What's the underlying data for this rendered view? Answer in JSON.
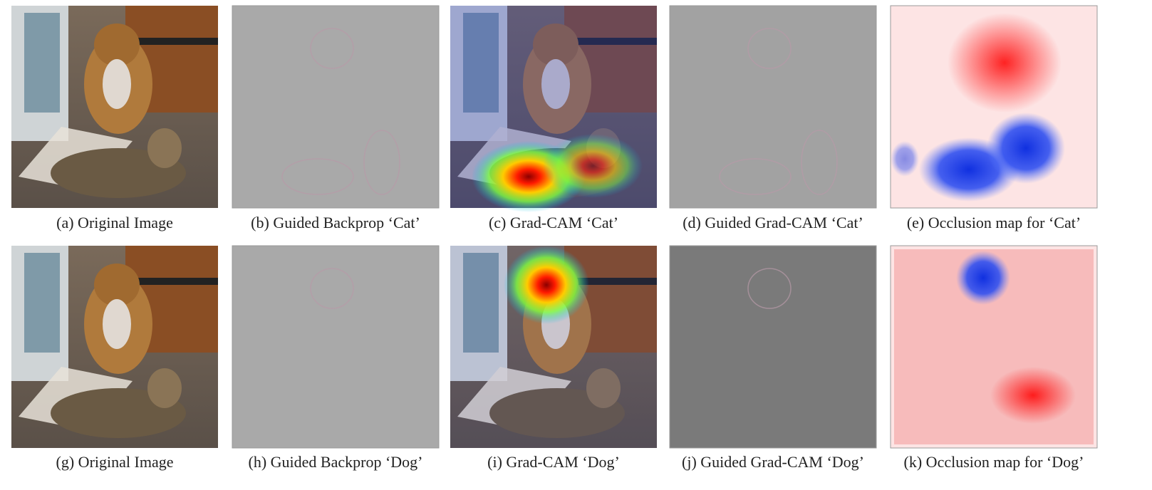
{
  "figure": {
    "rows": [
      {
        "captions": [
          "(a) Original Image",
          "(b) Guided Backprop ‘Cat’",
          "(c) Grad-CAM ‘Cat’",
          "(d) Guided Grad-CAM ‘Cat’",
          "(e) Occlusion map for ‘Cat’"
        ]
      },
      {
        "captions": [
          "(g) Original Image",
          "(h) Guided Backprop ‘Dog’",
          "(i) Grad-CAM ‘Dog’",
          "(j) Guided Grad-CAM ‘Dog’",
          "(k) Occlusion map for ‘Dog’"
        ]
      }
    ]
  }
}
